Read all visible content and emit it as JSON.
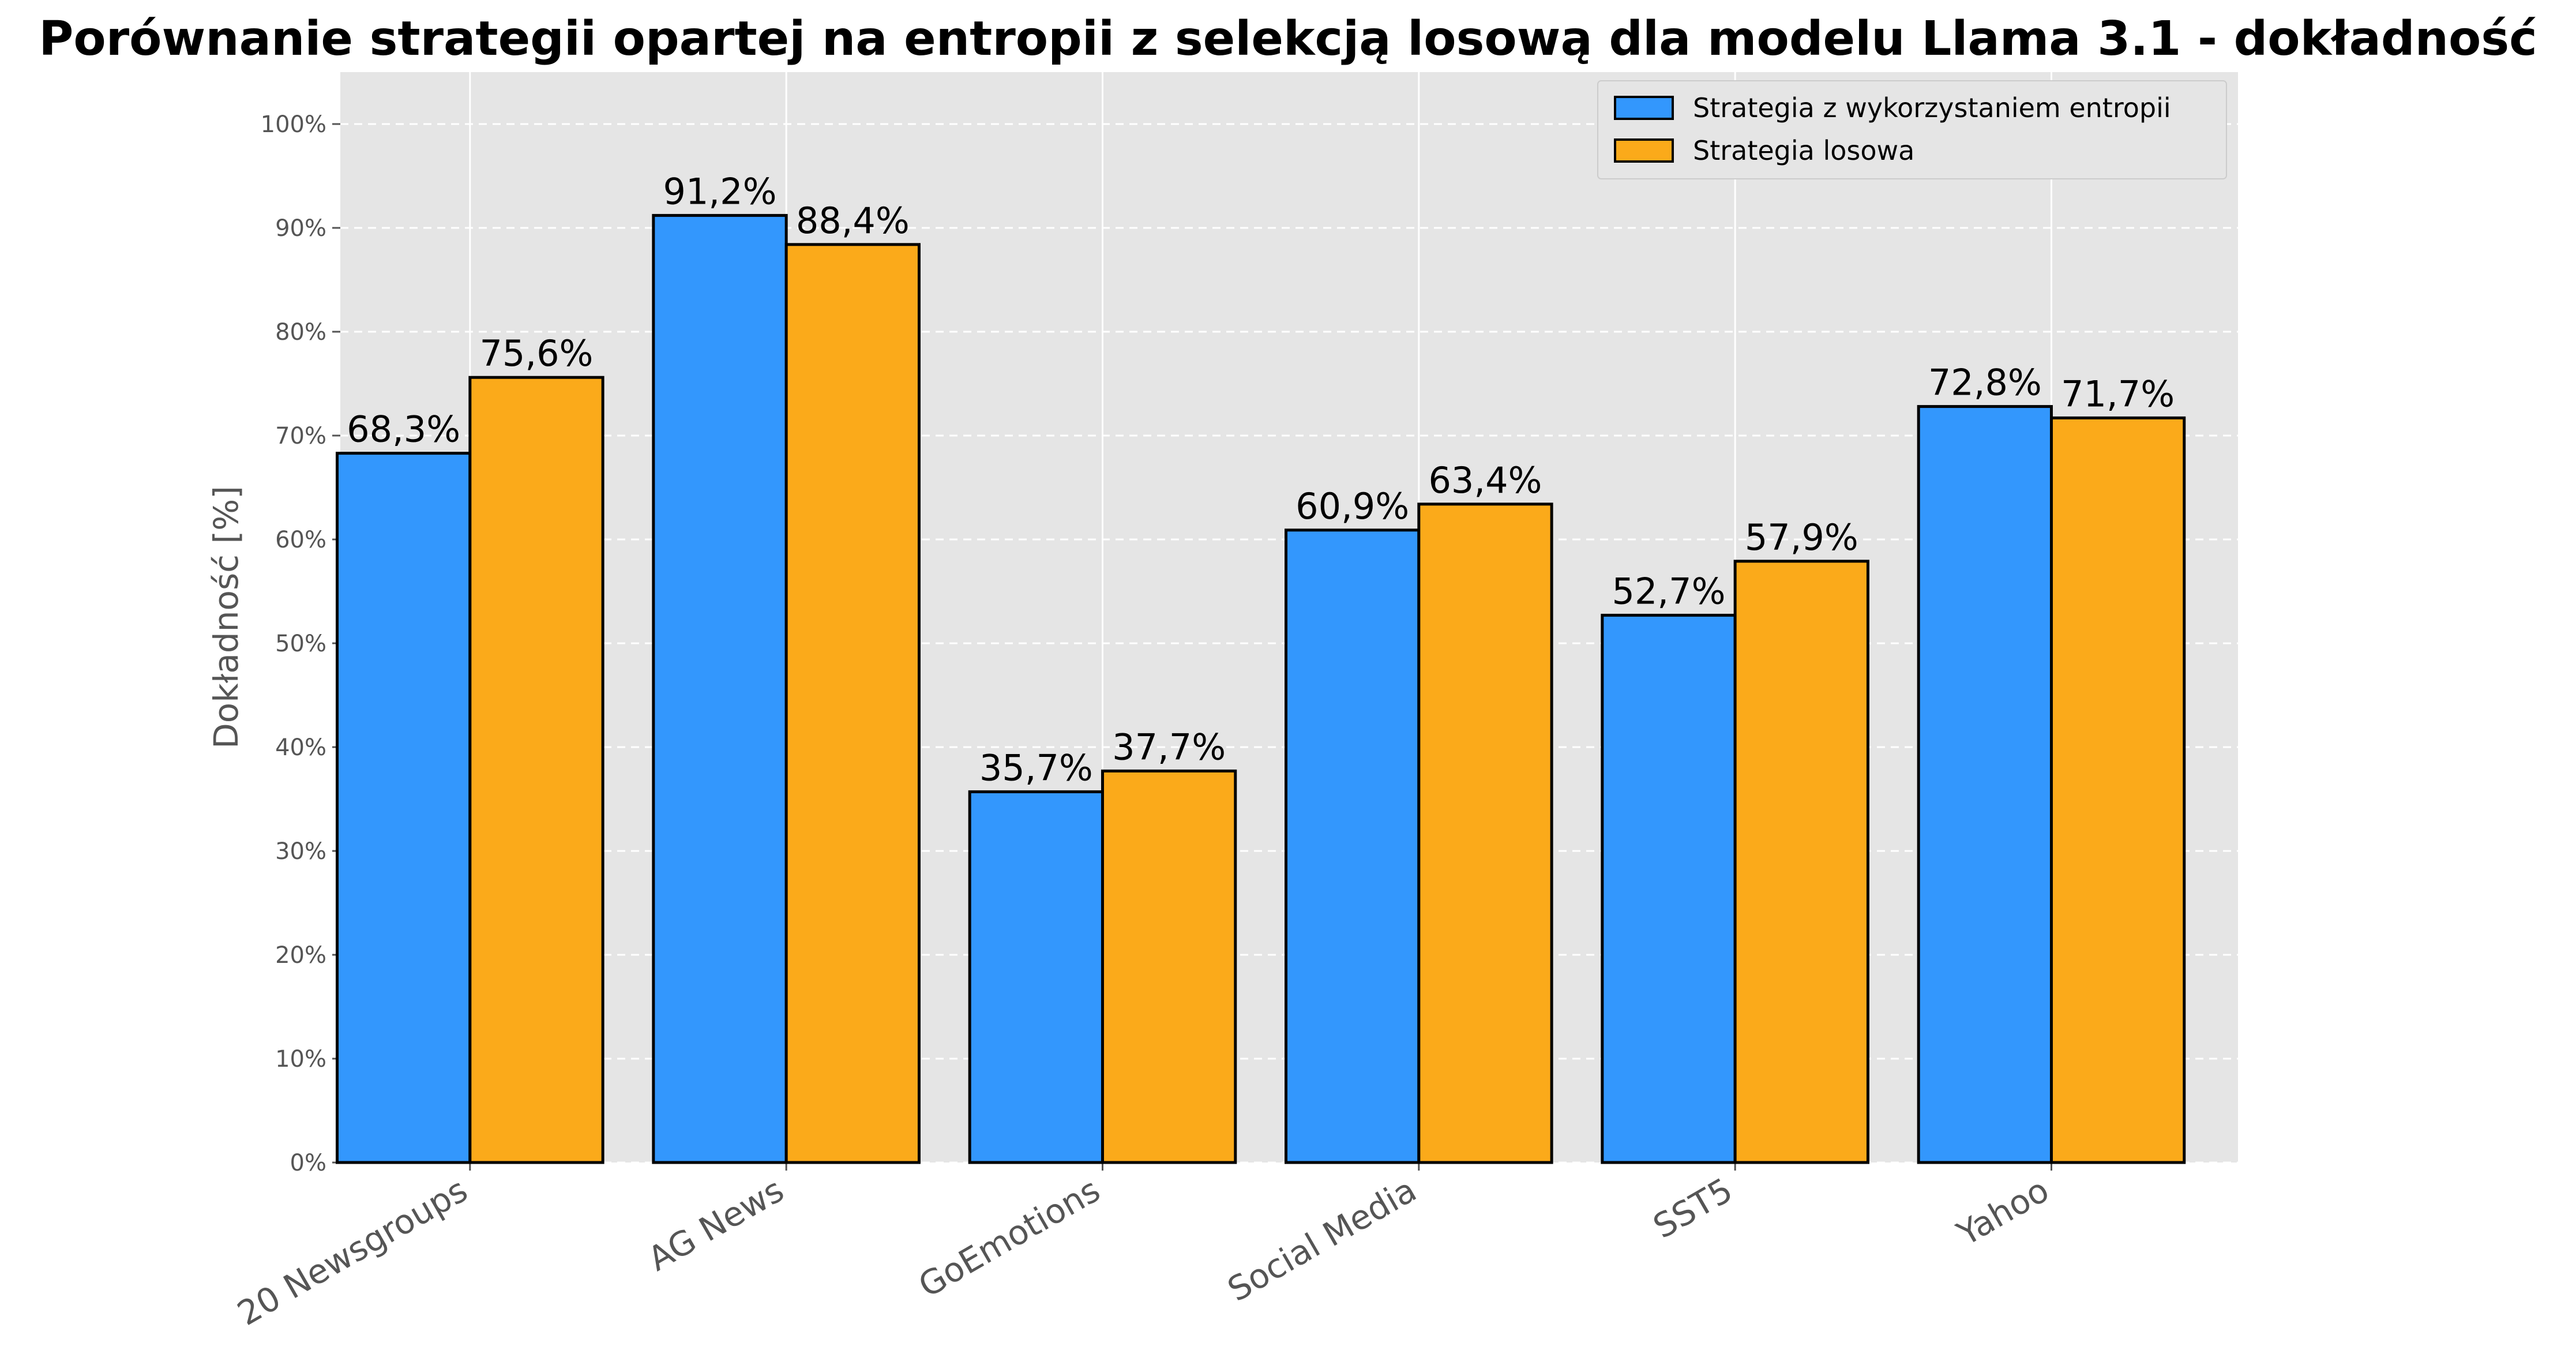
{
  "chart_data": {
    "type": "bar",
    "title": "Porównanie strategii opartej na entropii z selekcją losową dla modelu Llama 3.1 - dokładność",
    "xlabel": "",
    "ylabel": "Dokładność [%]",
    "categories": [
      "20 Newsgroups",
      "AG News",
      "GoEmotions",
      "Social Media",
      "SST5",
      "Yahoo"
    ],
    "series": [
      {
        "name": "Strategia z wykorzystaniem entropii",
        "color": "#3397fd",
        "values": [
          68.3,
          91.2,
          35.7,
          60.9,
          52.7,
          72.8
        ],
        "labels": [
          "68,3%",
          "91,2%",
          "35,7%",
          "60,9%",
          "52,7%",
          "72,8%"
        ]
      },
      {
        "name": "Strategia losowa",
        "color": "#fbaa1a",
        "values": [
          75.6,
          88.4,
          37.7,
          63.4,
          57.9,
          71.7
        ],
        "labels": [
          "75,6%",
          "88,4%",
          "37,7%",
          "63,4%",
          "57,9%",
          "71,7%"
        ]
      }
    ],
    "ylim": [
      0,
      105
    ],
    "yticks": [
      0,
      10,
      20,
      30,
      40,
      50,
      60,
      70,
      80,
      90,
      100
    ],
    "ytick_labels": [
      "0%",
      "10%",
      "20%",
      "30%",
      "40%",
      "50%",
      "60%",
      "70%",
      "80%",
      "90%",
      "100%"
    ],
    "grid": true,
    "legend_position": "top-right",
    "background": "#e5e5e5"
  }
}
